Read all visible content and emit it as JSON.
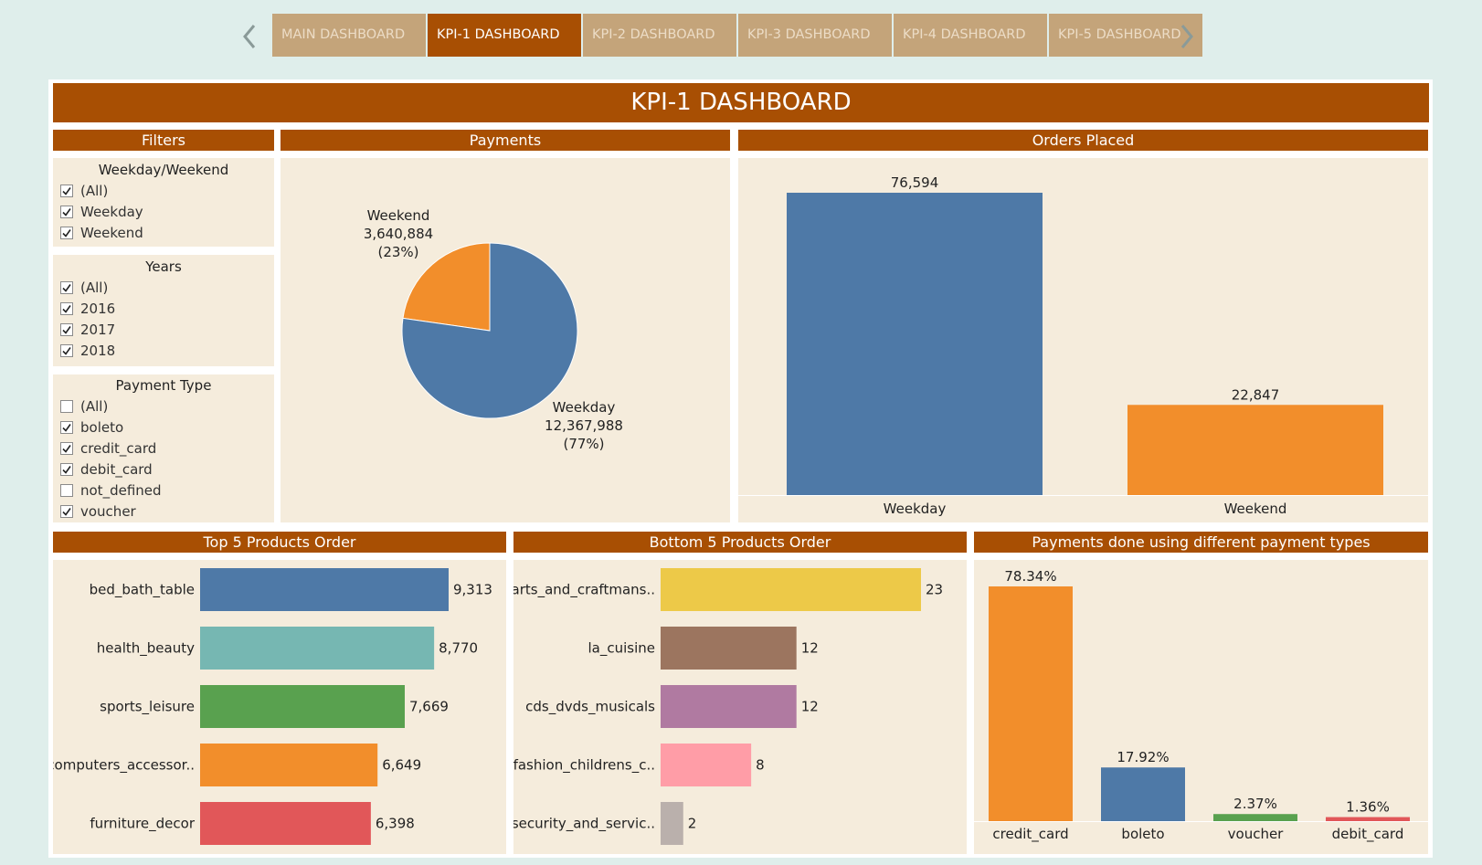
{
  "nav": {
    "tabs": [
      {
        "label": "MAIN DASHBOARD",
        "active": false
      },
      {
        "label": "KPI-1 DASHBOARD",
        "active": true
      },
      {
        "label": "KPI-2 DASHBOARD",
        "active": false
      },
      {
        "label": "KPI-3 DASHBOARD",
        "active": false
      },
      {
        "label": "KPI-4 DASHBOARD",
        "active": false
      },
      {
        "label": "KPI-5 DASHBOARD",
        "active": false
      }
    ],
    "prev_icon": "chevron-left-icon",
    "next_icon": "chevron-right-icon"
  },
  "title": "KPI-1 DASHBOARD",
  "headers": {
    "filters": "Filters",
    "payments": "Payments",
    "orders": "Orders Placed",
    "top5": "Top 5 Products Order",
    "bottom5": "Bottom 5 Products Order",
    "paytypes": "Payments done using different payment types"
  },
  "filters": {
    "weekday_weekend": {
      "title": "Weekday/Weekend",
      "items": [
        {
          "label": "(All)",
          "checked": true
        },
        {
          "label": "Weekday",
          "checked": true
        },
        {
          "label": "Weekend",
          "checked": true
        }
      ]
    },
    "years": {
      "title": "Years",
      "items": [
        {
          "label": "(All)",
          "checked": true
        },
        {
          "label": "2016",
          "checked": true
        },
        {
          "label": "2017",
          "checked": true
        },
        {
          "label": "2018",
          "checked": true
        }
      ]
    },
    "payment_type": {
      "title": "Payment Type",
      "items": [
        {
          "label": "(All)",
          "checked": false
        },
        {
          "label": "boleto",
          "checked": true
        },
        {
          "label": "credit_card",
          "checked": true
        },
        {
          "label": "debit_card",
          "checked": true
        },
        {
          "label": "not_defined",
          "checked": false
        },
        {
          "label": "voucher",
          "checked": true
        }
      ]
    }
  },
  "colors": {
    "brand": "#a84f03",
    "panel": "#f5ecdc",
    "blue": "#4e79a7",
    "orange": "#f28e2b",
    "teal": "#76b7b2",
    "green": "#59a14f",
    "red": "#e15759",
    "yellow": "#edc948",
    "brown": "#9c755f",
    "purple": "#b07aa1",
    "pink": "#ff9da7",
    "grey": "#bab0ac"
  },
  "chart_data": [
    {
      "id": "payments",
      "type": "pie",
      "slices": [
        {
          "label": "Weekday",
          "value": 12367988,
          "value_label": "12,367,988",
          "pct_label": "(77%)",
          "color": "#4e79a7"
        },
        {
          "label": "Weekend",
          "value": 3640884,
          "value_label": "3,640,884",
          "pct_label": "(23%)",
          "color": "#f28e2b"
        }
      ]
    },
    {
      "id": "orders",
      "type": "bar",
      "categories": [
        "Weekday",
        "Weekend"
      ],
      "values": [
        76594,
        22847
      ],
      "value_labels": [
        "76,594",
        "22,847"
      ],
      "colors": [
        "#4e79a7",
        "#f28e2b"
      ]
    },
    {
      "id": "top5",
      "type": "bar",
      "orientation": "horizontal",
      "categories": [
        "bed_bath_table",
        "health_beauty",
        "sports_leisure",
        "computers_accessor..",
        "furniture_decor"
      ],
      "values": [
        9313,
        8770,
        7669,
        6649,
        6398
      ],
      "value_labels": [
        "9,313",
        "8,770",
        "7,669",
        "6,649",
        "6,398"
      ],
      "colors": [
        "#4e79a7",
        "#76b7b2",
        "#59a14f",
        "#f28e2b",
        "#e15759"
      ]
    },
    {
      "id": "bottom5",
      "type": "bar",
      "orientation": "horizontal",
      "categories": [
        "arts_and_craftmans..",
        "la_cuisine",
        "cds_dvds_musicals",
        "fashion_childrens_c..",
        "security_and_servic.."
      ],
      "values": [
        23,
        12,
        12,
        8,
        2
      ],
      "value_labels": [
        "23",
        "12",
        "12",
        "8",
        "2"
      ],
      "colors": [
        "#edc948",
        "#9c755f",
        "#b07aa1",
        "#ff9da7",
        "#bab0ac"
      ]
    },
    {
      "id": "paytypes",
      "type": "bar",
      "categories": [
        "credit_card",
        "boleto",
        "voucher",
        "debit_card"
      ],
      "values": [
        78.34,
        17.92,
        2.37,
        1.36
      ],
      "value_labels": [
        "78.34%",
        "17.92%",
        "2.37%",
        "1.36%"
      ],
      "colors": [
        "#f28e2b",
        "#4e79a7",
        "#59a14f",
        "#e15759"
      ]
    }
  ]
}
